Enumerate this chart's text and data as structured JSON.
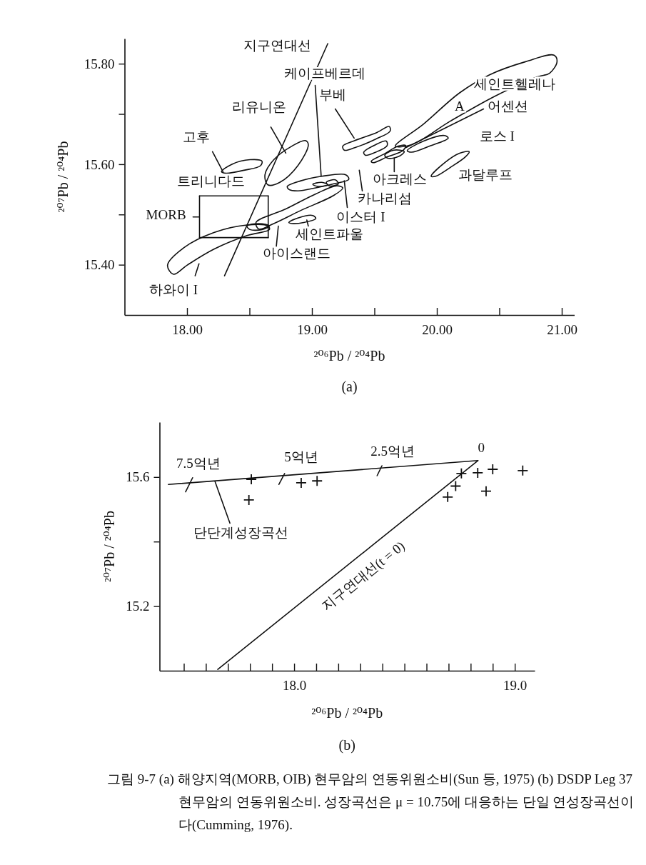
{
  "chart_data": [
    {
      "type": "line",
      "title": "(a)",
      "xlabel": "²⁰⁶Pb / ²⁰⁴Pb",
      "ylabel": "²⁰⁷Pb / ²⁰⁴Pb",
      "xlim": [
        17.5,
        21.1
      ],
      "ylim": [
        15.3,
        15.85
      ],
      "xticks": [
        {
          "value": 18,
          "label": "18.00"
        },
        {
          "value": 18.5,
          "label": null
        },
        {
          "value": 19,
          "label": "19.00"
        },
        {
          "value": 19.5,
          "label": null
        },
        {
          "value": 20,
          "label": "20.00"
        },
        {
          "value": 20.5,
          "label": null
        },
        {
          "value": 21,
          "label": "21.00"
        }
      ],
      "yticks": [
        {
          "value": 15.4,
          "label": "15.40"
        },
        {
          "value": 15.5,
          "label": null
        },
        {
          "value": 15.6,
          "label": "15.60"
        },
        {
          "value": 15.7,
          "label": null
        },
        {
          "value": 15.8,
          "label": "15.80"
        }
      ],
      "line_style": "solid",
      "series": [
        {
          "color": "#111111",
          "x": [
            18.1,
            18.65
          ],
          "values": [
            15.537,
            15.537
          ]
        },
        {
          "color": "#111111",
          "x": [
            18.1,
            18.65
          ],
          "values": [
            15.454,
            15.454
          ]
        },
        {
          "color": "#111111",
          "x": [
            18.1,
            18.1
          ],
          "values": [
            15.454,
            15.537
          ]
        },
        {
          "color": "#111111",
          "x": [
            18.65,
            18.65
          ],
          "values": [
            15.454,
            15.537
          ]
        },
        {
          "color": "#111111",
          "x": [
            18.3,
            19.127
          ],
          "values": [
            15.378,
            15.84
          ]
        },
        {
          "color": "#111111",
          "x": [
            19.026,
            19.074
          ],
          "values": [
            15.757,
            15.576
          ]
        },
        {
          "color": "#111111",
          "x": [
            19.187,
            19.338
          ],
          "values": [
            15.71,
            15.652
          ]
        },
        {
          "color": "#111111",
          "x": [
            18.671,
            18.791
          ],
          "values": [
            15.674,
            15.622
          ]
        },
        {
          "color": "#111111",
          "x": [
            18.204,
            18.288
          ],
          "values": [
            15.625,
            15.585
          ]
        },
        {
          "color": "#111111",
          "x": [
            18.048,
            18.096
          ],
          "values": [
            15.495,
            15.495
          ]
        },
        {
          "color": "#111111",
          "x": [
            18.065,
            18.096
          ],
          "values": [
            15.378,
            15.402
          ]
        },
        {
          "color": "#111111",
          "x": [
            18.715,
            18.731
          ],
          "values": [
            15.437,
            15.477
          ]
        },
        {
          "color": "#111111",
          "x": [
            18.959,
            18.971
          ],
          "values": [
            15.489,
            15.477
          ]
        },
        {
          "color": "#111111",
          "x": [
            19.259,
            19.283
          ],
          "values": [
            15.567,
            15.514
          ]
        },
        {
          "color": "#111111",
          "x": [
            19.379,
            19.403
          ],
          "values": [
            15.588,
            15.547
          ]
        },
        {
          "color": "#111111",
          "x": [
            19.659,
            19.659
          ],
          "values": [
            15.585,
            15.612
          ]
        },
        {
          "color": "#111111",
          "x": [
            19.751,
            20.374
          ],
          "values": [
            15.633,
            15.71
          ]
        }
      ],
      "annotations": [
        "지구연대선",
        "케이프베르데",
        "부베",
        "리유니온",
        "고후",
        "트리니다드",
        "MORB",
        "하와이 I",
        "아이스랜드",
        "세인트파울",
        "이스터 I",
        "카나리섬",
        "아크레스",
        "과달루프",
        "로스 I",
        "A",
        "어센션",
        "세인트헬레나"
      ]
    },
    {
      "type": "scatter",
      "title": "(b)",
      "xlabel": "²⁰⁶Pb / ²⁰⁴Pb",
      "ylabel": "²⁰⁷Pb / ²⁰⁴Pb",
      "xlim": [
        17.39,
        19.09
      ],
      "ylim": [
        15.0,
        15.77
      ],
      "xticks": [
        {
          "value": 17.5,
          "label": null
        },
        {
          "value": 17.6,
          "label": null
        },
        {
          "value": 17.7,
          "label": null
        },
        {
          "value": 17.8,
          "label": null
        },
        {
          "value": 17.9,
          "label": null
        },
        {
          "value": 18.0,
          "label": "18.0"
        },
        {
          "value": 18.1,
          "label": null
        },
        {
          "value": 18.2,
          "label": null
        },
        {
          "value": 18.3,
          "label": null
        },
        {
          "value": 18.4,
          "label": null
        },
        {
          "value": 18.5,
          "label": null
        },
        {
          "value": 18.6,
          "label": null
        },
        {
          "value": 18.7,
          "label": null
        },
        {
          "value": 18.8,
          "label": null
        },
        {
          "value": 18.9,
          "label": null
        },
        {
          "value": 19.0,
          "label": "19.0"
        }
      ],
      "yticks": [
        {
          "value": 15.2,
          "label": "15.2"
        },
        {
          "value": 15.4,
          "label": null
        },
        {
          "value": 15.6,
          "label": "15.6"
        }
      ],
      "line_style": "solid",
      "series": [
        {
          "marker": "cross",
          "color": "#111111",
          "x": [
            17.806,
            17.795,
            18.032,
            18.104,
            18.696,
            18.732,
            18.758,
            18.832,
            18.9,
            19.036,
            18.87
          ],
          "values": [
            15.593,
            15.529,
            15.582,
            15.588,
            15.538,
            15.572,
            15.611,
            15.613,
            15.624,
            15.62,
            15.556
          ]
        },
        {
          "type": "line",
          "color": "#111111",
          "x": [
            17.43,
            18.833
          ],
          "values": [
            15.577,
            15.651
          ]
        },
        {
          "type": "line",
          "color": "#111111",
          "x": [
            17.654,
            18.833
          ],
          "values": [
            15.004,
            15.651
          ]
        },
        {
          "type": "line",
          "color": "#111111",
          "x": [
            17.508,
            17.54
          ],
          "values": [
            15.554,
            15.598
          ]
        },
        {
          "type": "line",
          "color": "#111111",
          "x": [
            17.931,
            17.957
          ],
          "values": [
            15.577,
            15.611
          ]
        },
        {
          "type": "line",
          "color": "#111111",
          "x": [
            18.376,
            18.398
          ],
          "values": [
            15.604,
            15.635
          ]
        },
        {
          "type": "line",
          "color": "#111111",
          "x": [
            17.641,
            17.709
          ],
          "values": [
            15.587,
            15.457
          ]
        }
      ],
      "annotations": [
        "7.5억년",
        "5억년",
        "2.5억년",
        "0",
        "지구연대선(t = 0)",
        "단단계성장곡선",
        "그림 9-7 (a) 해양지역(MORB, OIB) 현무암의 연동위원소비(Sun 등, 1975) (b) DSDP Leg 37 현무암의 연동위원소비. 성장곡선은 μ = 10.75에 대응하는 단일 연성장곡선이다(Cumming, 1976)."
      ]
    }
  ]
}
